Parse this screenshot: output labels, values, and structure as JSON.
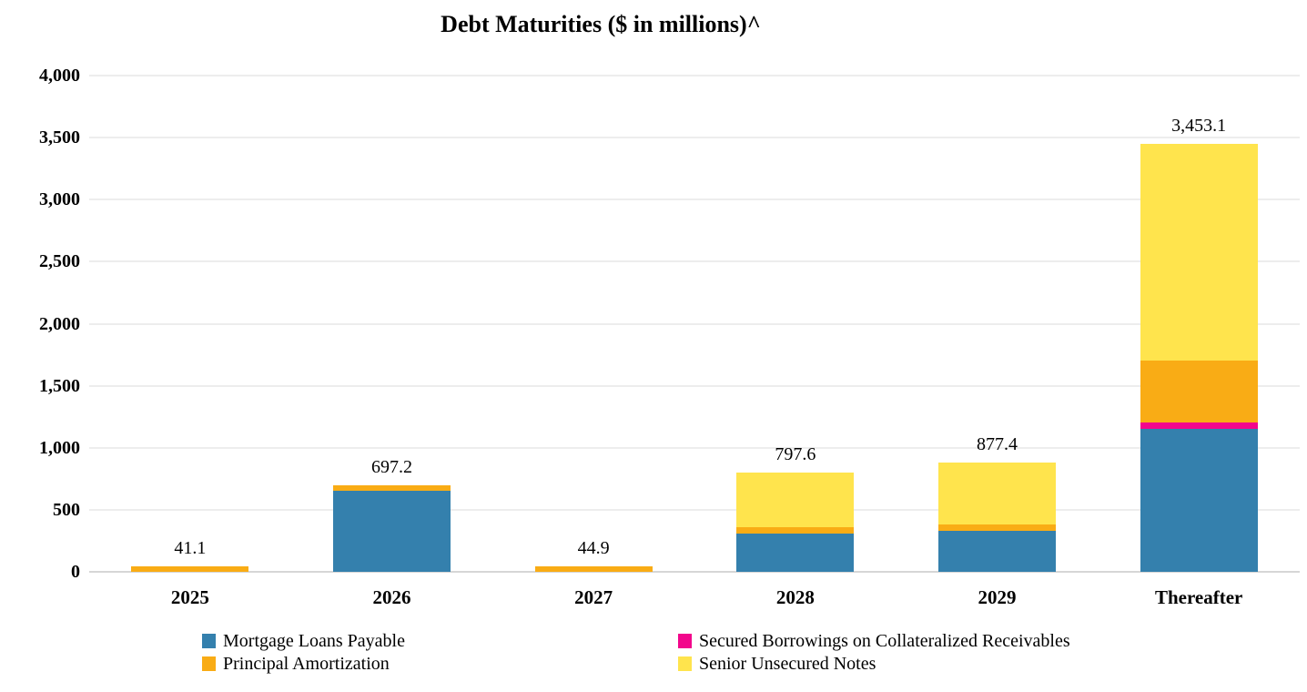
{
  "chart_data": {
    "type": "bar",
    "stacked": true,
    "title": "Debt Maturities ($ in millions)^",
    "categories": [
      "2025",
      "2026",
      "2027",
      "2028",
      "2029",
      "Thereafter"
    ],
    "bar_totals": [
      41.1,
      697.2,
      44.9,
      797.6,
      877.4,
      3453.1
    ],
    "bar_total_labels": [
      "41.1",
      "697.2",
      "44.9",
      "797.6",
      "877.4",
      "3,453.1"
    ],
    "series": [
      {
        "name": "Mortgage Loans Payable",
        "color": "#3480AD",
        "values": [
          0,
          654.0,
          0,
          310.0,
          330.0,
          1150.0
        ]
      },
      {
        "name": "Secured Borrowings on Collateralized Receivables",
        "color": "#F2078C",
        "values": [
          0,
          0,
          0,
          0,
          0,
          55.0
        ]
      },
      {
        "name": "Principal Amortization",
        "color": "#F9AC15",
        "values": [
          41.1,
          43.2,
          44.9,
          50.0,
          50.0,
          500.0
        ]
      },
      {
        "name": "Senior Unsecured Notes",
        "color": "#FFE44D",
        "values": [
          0,
          0,
          0,
          437.6,
          497.4,
          1748.1
        ]
      }
    ],
    "y_axis": {
      "min": 0,
      "max": 4000,
      "step": 500,
      "tick_labels": [
        "0",
        "500",
        "1,000",
        "1,500",
        "2,000",
        "2,500",
        "3,000",
        "3,500",
        "4,000"
      ]
    },
    "grid": "horizontal",
    "legend": {
      "position": "bottom",
      "columns": [
        [
          "Mortgage Loans Payable",
          "Principal Amortization"
        ],
        [
          "Secured Borrowings on Collateralized Receivables",
          "Senior Unsecured Notes"
        ]
      ]
    },
    "colors": {
      "gridline": "#EDEDED",
      "baseline": "#D6D6D6",
      "text": "#000000",
      "background": "#FFFFFF"
    }
  }
}
